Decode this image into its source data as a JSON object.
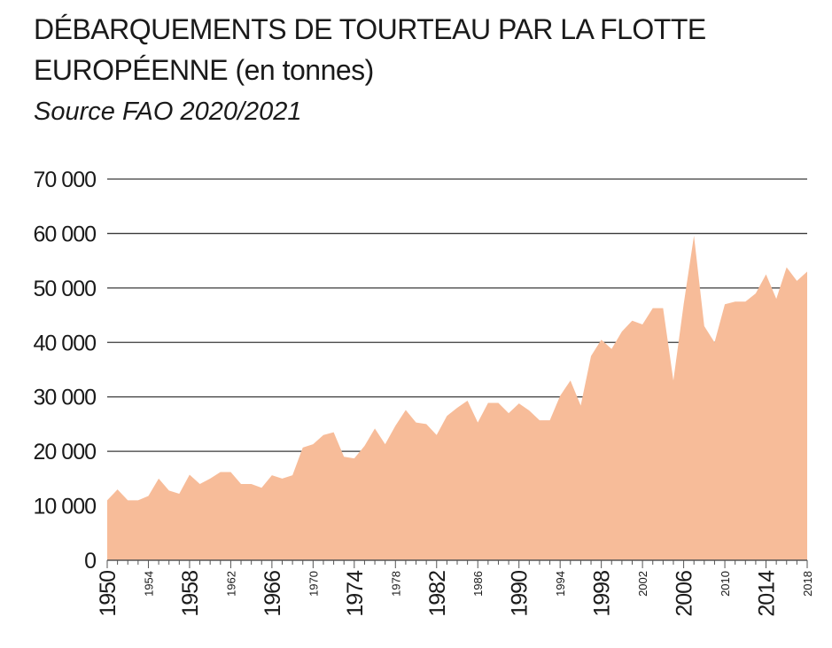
{
  "title_line1": "DÉBARQUEMENTS DE TOURTEAU PAR LA FLOTTE",
  "title_line2": "EUROPÉENNE",
  "title_unit": "(en tonnes)",
  "source": "Source FAO 2020/2021",
  "colors": {
    "area": "#f7bc99",
    "grid": "#3a3a3a",
    "text": "#1a1a1a"
  },
  "chart_data": {
    "type": "area",
    "title": "DÉBARQUEMENTS DE TOURTEAU PAR LA FLOTTE EUROPÉENNE (en tonnes)",
    "subtitle": "Source FAO 2020/2021",
    "xlabel": "",
    "ylabel": "",
    "ylim": [
      0,
      70000
    ],
    "xlim": [
      1950,
      2018
    ],
    "grid": true,
    "y_ticks": [
      {
        "value": 0,
        "label": "0"
      },
      {
        "value": 10000,
        "label": "10 000"
      },
      {
        "value": 20000,
        "label": "20 000"
      },
      {
        "value": 30000,
        "label": "30 000"
      },
      {
        "value": 40000,
        "label": "40 000"
      },
      {
        "value": 50000,
        "label": "50 000"
      },
      {
        "value": 60000,
        "label": "60 000"
      },
      {
        "value": 70000,
        "label": "70 000"
      }
    ],
    "x_ticks": [
      {
        "value": 1950,
        "label": "1950",
        "size": "large"
      },
      {
        "value": 1954,
        "label": "1954",
        "size": "small"
      },
      {
        "value": 1958,
        "label": "1958",
        "size": "large"
      },
      {
        "value": 1962,
        "label": "1962",
        "size": "small"
      },
      {
        "value": 1966,
        "label": "1966",
        "size": "large"
      },
      {
        "value": 1970,
        "label": "1970",
        "size": "small"
      },
      {
        "value": 1974,
        "label": "1974",
        "size": "large"
      },
      {
        "value": 1978,
        "label": "1978",
        "size": "small"
      },
      {
        "value": 1982,
        "label": "1982",
        "size": "large"
      },
      {
        "value": 1986,
        "label": "1986",
        "size": "small"
      },
      {
        "value": 1990,
        "label": "1990",
        "size": "large"
      },
      {
        "value": 1994,
        "label": "1994",
        "size": "small"
      },
      {
        "value": 1998,
        "label": "1998",
        "size": "large"
      },
      {
        "value": 2002,
        "label": "2002",
        "size": "small"
      },
      {
        "value": 2006,
        "label": "2006",
        "size": "large"
      },
      {
        "value": 2010,
        "label": "2010",
        "size": "small"
      },
      {
        "value": 2014,
        "label": "2014",
        "size": "large"
      },
      {
        "value": 2018,
        "label": "2018",
        "size": "small"
      }
    ],
    "x": [
      1950,
      1951,
      1952,
      1953,
      1954,
      1955,
      1956,
      1957,
      1958,
      1959,
      1960,
      1961,
      1962,
      1963,
      1964,
      1965,
      1966,
      1967,
      1968,
      1969,
      1970,
      1971,
      1972,
      1973,
      1974,
      1975,
      1976,
      1977,
      1978,
      1979,
      1980,
      1981,
      1982,
      1983,
      1984,
      1985,
      1986,
      1987,
      1988,
      1989,
      1990,
      1991,
      1992,
      1993,
      1994,
      1995,
      1996,
      1997,
      1998,
      1999,
      2000,
      2001,
      2002,
      2003,
      2004,
      2005,
      2006,
      2007,
      2008,
      2009,
      2010,
      2011,
      2012,
      2013,
      2014,
      2015,
      2016,
      2017,
      2018
    ],
    "values": [
      11000,
      13000,
      11000,
      11000,
      11800,
      15000,
      12800,
      12200,
      15700,
      14000,
      15000,
      16200,
      16200,
      14000,
      14000,
      13300,
      15600,
      15000,
      15600,
      20700,
      21300,
      23000,
      23500,
      19000,
      18700,
      21000,
      24200,
      21300,
      24700,
      27600,
      25300,
      25000,
      23000,
      26500,
      28000,
      29300,
      25300,
      28900,
      28900,
      27000,
      28800,
      27500,
      25700,
      25700,
      30200,
      33000,
      28400,
      37500,
      40500,
      38800,
      42000,
      44000,
      43300,
      46300,
      46300,
      33000,
      47000,
      59600,
      43000,
      40000,
      47000,
      47500,
      47500,
      49000,
      52500,
      48000,
      53800,
      51300,
      53000
    ]
  }
}
